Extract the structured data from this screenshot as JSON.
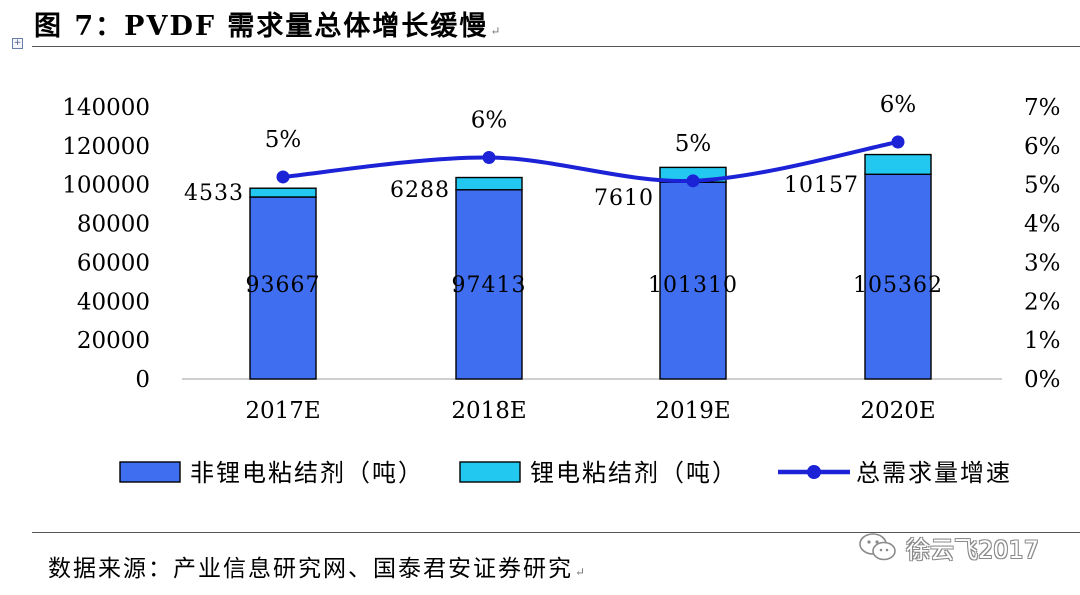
{
  "title": "图 7：PVDF 需求量总体增长缓慢",
  "return_mark": "↵",
  "source": "数据来源：产业信息研究网、国泰君安证券研究",
  "watermark": {
    "text": "徐云飞2017",
    "icon": "wechat-icon"
  },
  "colors": {
    "non_li_bar": "#3F6FF0",
    "li_bar": "#22C8F0",
    "growth_line": "#1C22D6",
    "axis": "#bfbfbf"
  },
  "chart_data": {
    "type": "bar",
    "stacked": true,
    "categories": [
      "2017E",
      "2018E",
      "2019E",
      "2020E"
    ],
    "series": [
      {
        "name": "非锂电粘结剂（吨）",
        "type": "bar",
        "axis": "left",
        "values": [
          93667,
          97413,
          101310,
          105362
        ]
      },
      {
        "name": "锂电粘结剂（吨）",
        "type": "bar",
        "axis": "left",
        "values": [
          4533,
          6288,
          7610,
          10157
        ]
      },
      {
        "name": "总需求量增速",
        "type": "line",
        "axis": "right",
        "values": [
          0.052,
          0.057,
          0.051,
          0.061
        ],
        "labels": [
          "5%",
          "6%",
          "5%",
          "6%"
        ]
      }
    ],
    "y_left": {
      "min": 0,
      "max": 140000,
      "ticks": [
        "0",
        "20000",
        "40000",
        "60000",
        "80000",
        "100000",
        "120000",
        "140000"
      ]
    },
    "y_right": {
      "min": 0,
      "max": 0.07,
      "ticks": [
        "0%",
        "1%",
        "2%",
        "3%",
        "4%",
        "5%",
        "6%",
        "7%"
      ]
    },
    "legend": "bottom",
    "grid": false
  }
}
